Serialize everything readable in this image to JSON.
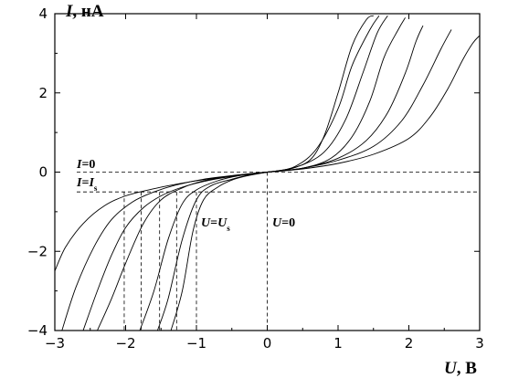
{
  "chart_data": {
    "type": "line",
    "xlabel": {
      "symbol": "U",
      "unit": ", В"
    },
    "ylabel": {
      "symbol": "I",
      "unit": ", нА"
    },
    "xlim": [
      -3,
      3
    ],
    "ylim": [
      -4,
      4
    ],
    "xticks": [
      -3,
      -2,
      -1,
      0,
      1,
      2,
      3
    ],
    "xtick_labels": [
      "−3",
      "−2",
      "−1",
      "0",
      "1",
      "2",
      "3"
    ],
    "yticks": [
      -4,
      -2,
      0,
      2,
      4
    ],
    "ytick_labels": [
      "−4",
      "−2",
      "0",
      "2",
      "4"
    ],
    "grid": false,
    "reference_lines": {
      "horizontal": [
        0,
        -0.5
      ],
      "vertical": [
        0,
        -1.0,
        -1.28,
        -1.52,
        -1.78,
        -2.02
      ]
    },
    "annotations": [
      {
        "text_symbol": "I",
        "text_rest": "=0"
      },
      {
        "text_symbol": "I",
        "text_rest": "=",
        "text_symbol2": "I",
        "text_sub": "s"
      },
      {
        "text_symbol": "U",
        "text_rest": "=",
        "text_symbol2": "U",
        "text_sub": "s"
      },
      {
        "text_symbol": "U",
        "text_rest": "=0"
      }
    ],
    "series": [
      {
        "values": [
          [
            -1.36,
            -4.0
          ],
          [
            -1.2,
            -3.0
          ],
          [
            -1.05,
            -1.5
          ],
          [
            -0.9,
            -0.7
          ],
          [
            -0.7,
            -0.38
          ],
          [
            -0.5,
            -0.2
          ],
          [
            -0.3,
            -0.1
          ],
          [
            0,
            0.0
          ],
          [
            0.3,
            0.08
          ],
          [
            0.6,
            0.3
          ],
          [
            0.8,
            0.9
          ],
          [
            1.0,
            2.0
          ],
          [
            1.2,
            3.2
          ],
          [
            1.4,
            3.85
          ],
          [
            1.5,
            3.95
          ]
        ]
      },
      {
        "values": [
          [
            -1.55,
            -4.0
          ],
          [
            -1.4,
            -3.2
          ],
          [
            -1.2,
            -1.7
          ],
          [
            -1.0,
            -0.7
          ],
          [
            -0.8,
            -0.35
          ],
          [
            -0.5,
            -0.18
          ],
          [
            -0.2,
            -0.05
          ],
          [
            0.1,
            0.02
          ],
          [
            0.4,
            0.15
          ],
          [
            0.7,
            0.6
          ],
          [
            1.0,
            1.6
          ],
          [
            1.2,
            2.7
          ],
          [
            1.45,
            3.6
          ],
          [
            1.58,
            3.95
          ]
        ]
      },
      {
        "values": [
          [
            -1.8,
            -4.0
          ],
          [
            -1.6,
            -3.0
          ],
          [
            -1.4,
            -1.7
          ],
          [
            -1.2,
            -0.8
          ],
          [
            -1.0,
            -0.45
          ],
          [
            -0.7,
            -0.22
          ],
          [
            -0.4,
            -0.09
          ],
          [
            0,
            0.0
          ],
          [
            0.4,
            0.12
          ],
          [
            0.8,
            0.5
          ],
          [
            1.1,
            1.3
          ],
          [
            1.35,
            2.5
          ],
          [
            1.55,
            3.5
          ],
          [
            1.7,
            3.95
          ]
        ]
      },
      {
        "values": [
          [
            -2.4,
            -4.0
          ],
          [
            -2.2,
            -3.2
          ],
          [
            -2.0,
            -2.3
          ],
          [
            -1.75,
            -1.3
          ],
          [
            -1.5,
            -0.7
          ],
          [
            -1.2,
            -0.4
          ],
          [
            -0.9,
            -0.22
          ],
          [
            -0.5,
            -0.1
          ],
          [
            0,
            0.0
          ],
          [
            0.5,
            0.1
          ],
          [
            0.9,
            0.35
          ],
          [
            1.2,
            0.9
          ],
          [
            1.45,
            1.8
          ],
          [
            1.65,
            2.9
          ],
          [
            1.85,
            3.6
          ],
          [
            1.95,
            3.9
          ]
        ]
      },
      {
        "values": [
          [
            -2.9,
            -4.0
          ],
          [
            -2.7,
            -2.9
          ],
          [
            -2.45,
            -1.9
          ],
          [
            -2.2,
            -1.2
          ],
          [
            -1.9,
            -0.75
          ],
          [
            -1.6,
            -0.5
          ],
          [
            -1.3,
            -0.33
          ],
          [
            -0.9,
            -0.18
          ],
          [
            -0.4,
            -0.07
          ],
          [
            0,
            0.0
          ],
          [
            0.5,
            0.1
          ],
          [
            1.0,
            0.35
          ],
          [
            1.4,
            0.8
          ],
          [
            1.7,
            1.5
          ],
          [
            1.95,
            2.5
          ],
          [
            2.1,
            3.3
          ],
          [
            2.2,
            3.7
          ]
        ]
      },
      {
        "values": [
          [
            -2.6,
            -4.0
          ],
          [
            -2.4,
            -3.0
          ],
          [
            -2.2,
            -2.1
          ],
          [
            -2.0,
            -1.4
          ],
          [
            -1.75,
            -0.9
          ],
          [
            -1.5,
            -0.6
          ],
          [
            -1.2,
            -0.38
          ],
          [
            -0.8,
            -0.2
          ],
          [
            -0.3,
            -0.06
          ],
          [
            0,
            0.0
          ],
          [
            0.5,
            0.1
          ],
          [
            1.0,
            0.3
          ],
          [
            1.5,
            0.65
          ],
          [
            1.9,
            1.3
          ],
          [
            2.2,
            2.2
          ],
          [
            2.45,
            3.1
          ],
          [
            2.6,
            3.6
          ]
        ]
      },
      {
        "values": [
          [
            -3.0,
            -2.5
          ],
          [
            -2.85,
            -1.9
          ],
          [
            -2.6,
            -1.3
          ],
          [
            -2.3,
            -0.85
          ],
          [
            -2.0,
            -0.6
          ],
          [
            -1.6,
            -0.42
          ],
          [
            -1.2,
            -0.28
          ],
          [
            -0.7,
            -0.14
          ],
          [
            -0.2,
            -0.03
          ],
          [
            0,
            0.0
          ],
          [
            0.5,
            0.08
          ],
          [
            1.0,
            0.22
          ],
          [
            1.5,
            0.45
          ],
          [
            2.0,
            0.85
          ],
          [
            2.3,
            1.4
          ],
          [
            2.55,
            2.1
          ],
          [
            2.75,
            2.8
          ],
          [
            2.9,
            3.25
          ],
          [
            3.0,
            3.45
          ]
        ]
      }
    ]
  }
}
